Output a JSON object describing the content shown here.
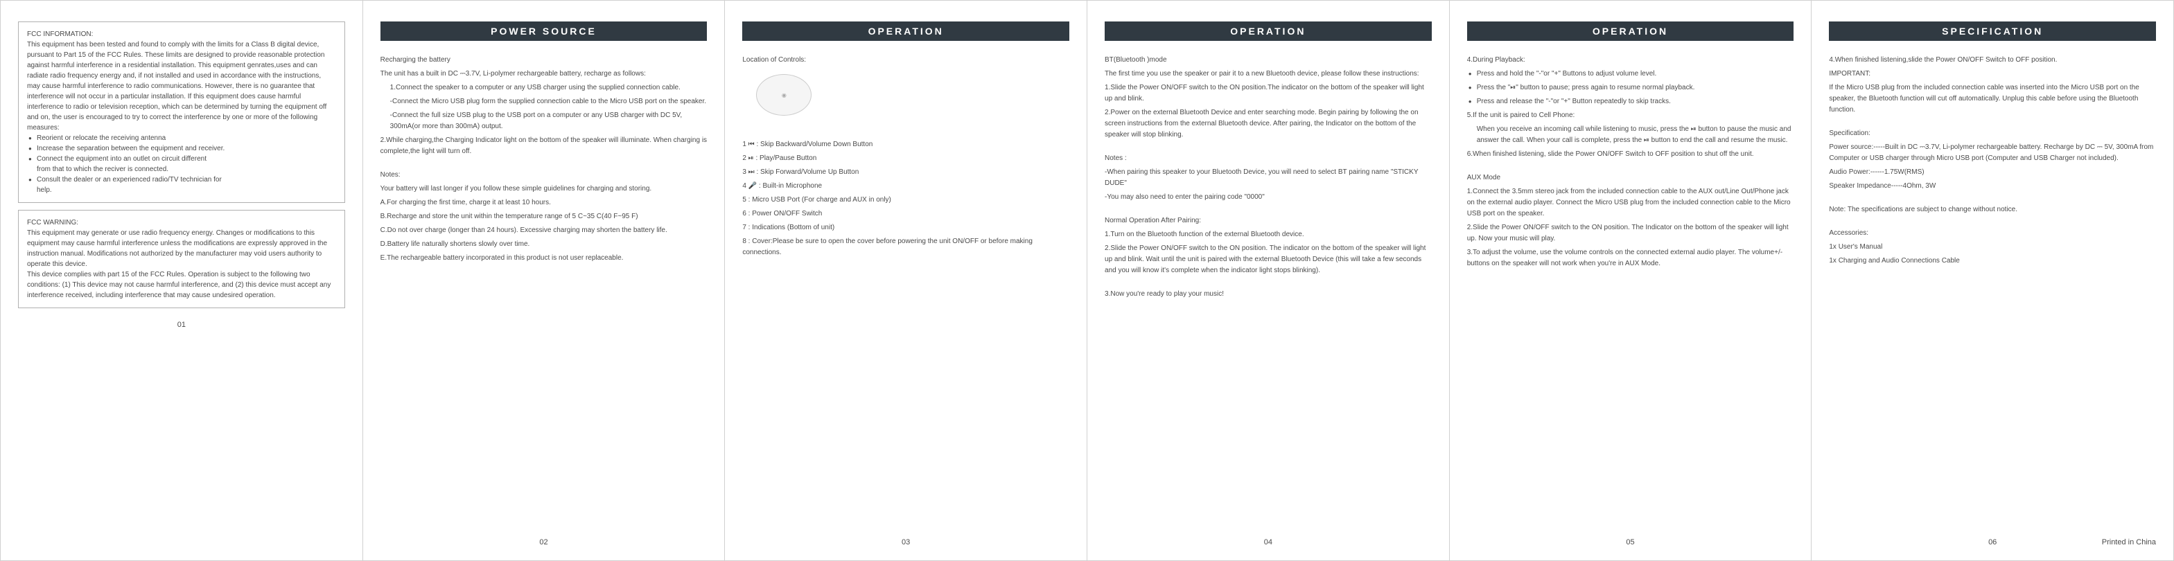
{
  "panel1": {
    "box1_title": "FCC INFORMATION:",
    "box1_body": "This equipment has been tested and found to comply with the limits for a Class B digital device, pursuant to Part 15 of the FCC Rules. These limits are designed to provide reasonable protection against harmful interference in a residential installation. This equipment genrates,uses and can radiate radio frequency energy and, if not installed and used in accordance with the instructions, may cause harmful interference to radio communications. However, there is no guarantee that interference will not occur in a particular installation. If this equipment does cause harmful interference to radio or television reception, which can be determined by turning the equipment off and on, the user is encouraged to try to correct the interference by one or more of the following measures:",
    "box1_bullets": [
      "Reorient or relocate the receiving antenna",
      "Increase the separation between the equipment and receiver.",
      "Connect the equipment into an outlet on circuit different",
      "Consult the dealer or an experienced  radio/TV technician for"
    ],
    "box1_sub1": "from that to which the reciver is connected.",
    "box1_sub2": "help.",
    "box2_title": "FCC WARNING:",
    "box2_body": "This equipment may generate or use radio frequency energy. Changes or modifications to this equipment may cause harmful interference unless the modifications are expressly approved in the instruction manual. Modifications not authorized by the manufacturer may void users authority to operate this device.",
    "box2_body2": "This device complies with part 15 of the FCC Rules. Operation is subject to the following two conditions: (1) This device may not cause harmful interference, and (2) this device must accept any interference received, including interference that may cause undesired operation.",
    "pagenum": "01"
  },
  "panel2": {
    "header": "POWER SOURCE",
    "title": "Recharging the battery",
    "line1": "The unit has a built in DC ⎓3.7V, Li-polymer rechargeable battery, recharge as follows:",
    "line2": "1.Connect the speaker to a computer or any USB charger using the supplied connection cable.",
    "line3": "-Connect the Micro USB plug form the supplied connection cable to the Micro USB port on the speaker.",
    "line4": "-Connect the full size USB plug to the USB port on a computer or any USB charger with DC 5V, 300mA(or more than 300mA) output.",
    "line5": "2.While charging,the Charging Indicator light on the bottom of the speaker will illuminate. When charging is complete,the light will turn off.",
    "notes_title": "Notes:",
    "noteA": "Your battery will last longer if you follow these simple guidelines for charging and storing.",
    "noteB": "A.For charging the first time, charge it at least 10 hours.",
    "noteC": "B.Recharge and store the unit within the temperature range of 5 C~35 C(40 F~95 F)",
    "noteD": "C.Do not over charge (longer than 24 hours). Excessive charging may shorten the battery life.",
    "noteE": "D.Battery life naturally shortens slowly over time.",
    "noteF": "E.The rechargeable battery incorporated in this product is not user replaceable.",
    "pagenum": "02"
  },
  "panel3": {
    "header": "OPERATION",
    "title": "Location of Controls:",
    "list": [
      "1    ⏮   : Skip Backward/Volume Down Button",
      "2    ⏯   : Play/Pause Button",
      "3    ⏭   : Skip Forward/Volume Up Button",
      "4    🎤   : Built-in Microphone",
      "5 : Micro USB Port (For charge and AUX in only)",
      "6 : Power ON/OFF Switch",
      "7 : Indications (Bottom of unit)",
      "8 : Cover:Please be sure to open the cover before powering the unit ON/OFF or before making connections."
    ],
    "pagenum": "03"
  },
  "panel4": {
    "header": "OPERATION",
    "title": "BT(Bluetooth )mode",
    "intro": "The first time you use the speaker or pair it to a new Bluetooth device, please follow these instructions:",
    "s1": "1.Slide the Power ON/OFF switch to the ON position.The indicator on the bottom of the speaker will light up and blink.",
    "s2": "2.Power on the external Bluetooth Device and enter searching mode. Begin pairing by following the on screen instructions from the external Bluetooth device. After pairing, the Indicator on the bottom of the speaker will stop blinking.",
    "notes_title": "Notes :",
    "n1": "-When pairing this speaker to your Bluetooth Device, you will need to select BT pairing name \"STICKY DUDE\"",
    "n2": "-You may also need to enter the pairing code \"0000\"",
    "normal_title": "Normal Operation After Pairing:",
    "p1": "1.Turn on the Bluetooth function of the external Bluetooth device.",
    "p2": "2.Slide the Power ON/OFF switch to the ON position. The indicator on the bottom of the speaker will light up and blink. Wait until the unit is paired with the external Bluetooth Device (this will take a few seconds and you will know it's complete when the indicator light stops blinking).",
    "p3": "3.Now you're ready to play your music!",
    "pagenum": "04"
  },
  "panel5": {
    "header": "OPERATION",
    "title": "4.During Playback:",
    "b1": "Press and hold the \"-\"or \"+\" Buttons to adjust volume level.",
    "b2": "Press the \"⏯\" button to pause; press again to resume normal playback.",
    "b3": "Press and release the \"-\"or \"+\" Button repeatedly to skip tracks.",
    "s5": "5.If the unit is paired to Cell Phone:",
    "s5b": "When you receive an incoming call while listening to music, press the ⏯ button to pause the music and answer the call. When your call is complete, press the ⏯ button to end the call and resume the music.",
    "s6": "6.When finished listening, slide the Power ON/OFF Switch to OFF position to shut off the unit.",
    "aux_title": "AUX Mode",
    "a1": "1.Connect the 3.5mm stereo jack from the included connection cable to the AUX out/Line Out/Phone jack on the external audio player. Connect the Micro USB plug from the included connection cable to the Micro USB port on the speaker.",
    "a2": "2.Slide the Power ON/OFF switch to the ON position. The Indicator on the bottom of the speaker will light up. Now your music will play.",
    "a3": "3.To adjust the volume, use the volume controls on the connected external audio player. The volume+/- buttons on the speaker will not work when you're in AUX Mode.",
    "pagenum": "05"
  },
  "panel6": {
    "header": "SPECIFICATION",
    "l1": "4.When finished listening,slide the Power ON/OFF Switch to OFF position.",
    "imp": "IMPORTANT:",
    "l2": "If the Micro USB plug from the included connection cable was inserted into the Micro USB port on the speaker, the Bluetooth function will cut off automatically. Unplug this cable before using the Bluetooth function.",
    "spec_title": "Specification:",
    "sp1": "Power source:-----Built in DC ⎓3.7V, Li-polymer rechargeable battery. Recharge by DC ⎓ 5V, 300mA from Computer or USB charger through Micro USB port (Computer and USB Charger not included).",
    "sp2": "Audio Power:------1.75W(RMS)",
    "sp3": "Speaker Impedance-----4Ohm, 3W",
    "note": "Note: The specifications are subject to change without notice.",
    "acc_title": "Accessories:",
    "acc1": "1x User's Manual",
    "acc2": "1x Charging and Audio Connections Cable",
    "pagenum": "06",
    "printed": "Printed in China"
  }
}
